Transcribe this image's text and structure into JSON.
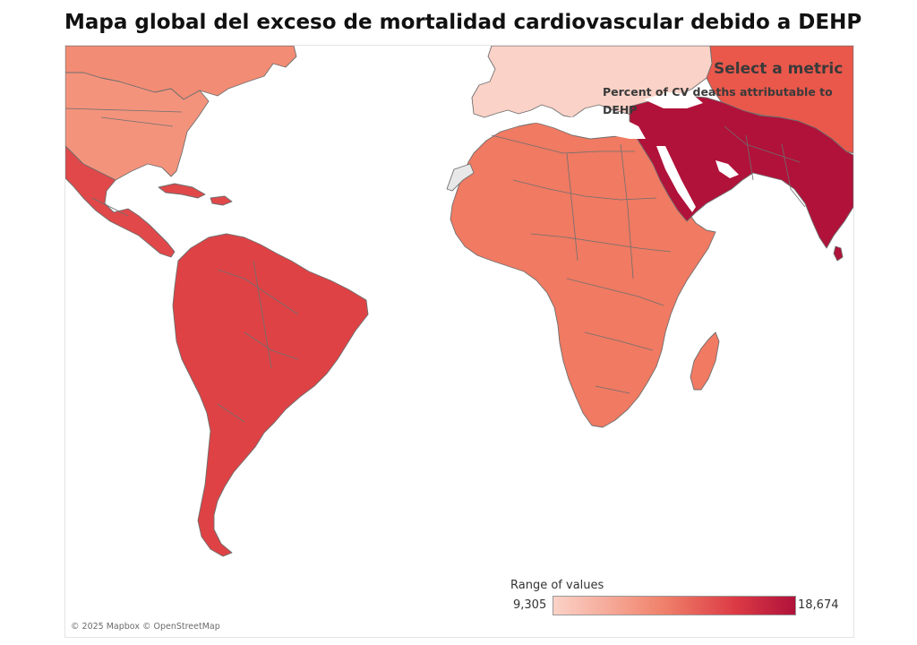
{
  "title": "Mapa global del exceso de mortalidad cardiovascular debido a DEHP",
  "metric_selector": {
    "title": "Select a metric",
    "selected_value": "Percent of CV deaths attributable to DEHP"
  },
  "legend": {
    "title": "Range of values",
    "min_label": "9,305",
    "max_label": "18,674",
    "min_value": 9305,
    "max_value": 18674,
    "colors": [
      "#fbd2c7",
      "#f0826b",
      "#dc3b45",
      "#b0123a"
    ]
  },
  "attribution": "© 2025 Mapbox © OpenStreetMap",
  "region_colors": {
    "europe": "#fbd2c7",
    "north_america_north": "#f38c74",
    "usa": "#f4937c",
    "mexico_central_america": "#e0484a",
    "caribbean": "#e0484a",
    "south_america": "#de4245",
    "africa": "#f07a62",
    "middle_east_south_asia": "#b0123a",
    "russia_east_asia": "#e9584b",
    "western_sahara": "#e8e8e8"
  }
}
